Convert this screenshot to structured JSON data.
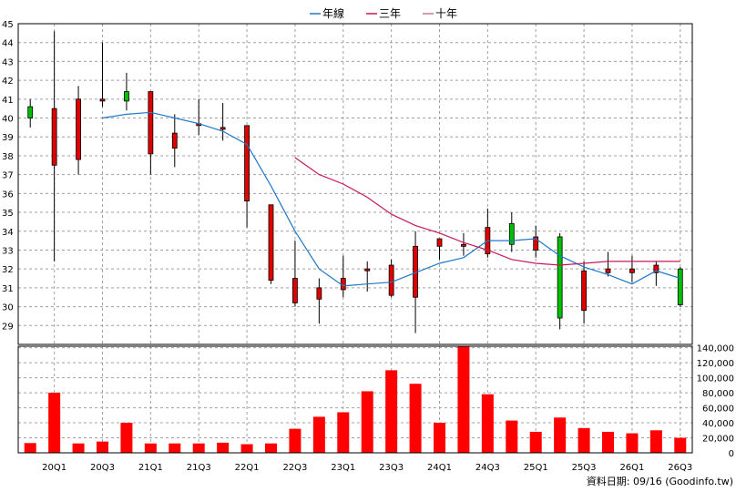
{
  "chart_data": [
    {
      "type": "candlestick",
      "legend": [
        {
          "name": "年線",
          "color": "#1f78c8"
        },
        {
          "name": "三年",
          "color": "#c8185a"
        },
        {
          "name": "十年",
          "color": "#c87898"
        }
      ],
      "legend_position": "top-center",
      "ylim": [
        28,
        45
      ],
      "yticks": [
        29,
        30,
        31,
        32,
        33,
        34,
        35,
        36,
        37,
        38,
        39,
        40,
        41,
        42,
        43,
        44,
        45
      ],
      "grid": true,
      "up_color": "#00c000",
      "down_color": "#e00000",
      "candles": [
        {
          "open": 40.0,
          "close": 40.6,
          "high": 41.0,
          "low": 39.5
        },
        {
          "open": 40.5,
          "close": 37.5,
          "high": 44.6,
          "low": 32.4
        },
        {
          "open": 41.0,
          "close": 37.8,
          "high": 41.7,
          "low": 37.0
        },
        {
          "open": 41.0,
          "close": 40.9,
          "high": 44.0,
          "low": 40.6
        },
        {
          "open": 40.9,
          "close": 41.4,
          "high": 42.4,
          "low": 40.4
        },
        {
          "open": 41.4,
          "close": 38.1,
          "high": 41.4,
          "low": 37.0
        },
        {
          "open": 39.2,
          "close": 38.4,
          "high": 40.2,
          "low": 37.4
        },
        {
          "open": 39.7,
          "close": 39.6,
          "high": 41.0,
          "low": 39.1
        },
        {
          "open": 39.5,
          "close": 39.4,
          "high": 40.8,
          "low": 38.8
        },
        {
          "open": 39.6,
          "close": 35.6,
          "high": 39.6,
          "low": 34.2
        },
        {
          "open": 35.4,
          "close": 31.4,
          "high": 35.4,
          "low": 31.2
        },
        {
          "open": 31.5,
          "close": 30.2,
          "high": 33.5,
          "low": 30.0
        },
        {
          "open": 31.0,
          "close": 30.4,
          "high": 31.5,
          "low": 29.1
        },
        {
          "open": 31.5,
          "close": 30.9,
          "high": 32.7,
          "low": 30.5
        },
        {
          "open": 32.0,
          "close": 31.9,
          "high": 32.4,
          "low": 30.8
        },
        {
          "open": 32.2,
          "close": 30.6,
          "high": 32.5,
          "low": 30.5
        },
        {
          "open": 33.2,
          "close": 30.5,
          "high": 34.0,
          "low": 28.6
        },
        {
          "open": 33.6,
          "close": 33.2,
          "high": 33.6,
          "low": 32.5
        },
        {
          "open": 33.3,
          "close": 33.2,
          "high": 33.9,
          "low": 32.7
        },
        {
          "open": 34.2,
          "close": 32.8,
          "high": 35.2,
          "low": 32.6
        },
        {
          "open": 33.3,
          "close": 34.4,
          "high": 35.0,
          "low": 32.9
        },
        {
          "open": 33.7,
          "close": 33.0,
          "high": 34.3,
          "low": 32.6
        },
        {
          "open": 29.4,
          "close": 33.7,
          "high": 33.9,
          "low": 28.8
        },
        {
          "open": 31.9,
          "close": 29.8,
          "high": 32.4,
          "low": 29.1
        },
        {
          "open": 32.0,
          "close": 31.8,
          "high": 32.9,
          "low": 31.6
        },
        {
          "open": 32.0,
          "close": 31.8,
          "high": 32.7,
          "low": 31.3
        },
        {
          "open": 32.2,
          "close": 31.8,
          "high": 32.4,
          "low": 31.1
        },
        {
          "open": 30.1,
          "close": 32.0,
          "high": 32.1,
          "low": 30.0
        }
      ],
      "year_line": [
        null,
        null,
        null,
        40.0,
        40.2,
        40.3,
        40.0,
        39.7,
        39.3,
        38.6,
        36.4,
        34.0,
        32.0,
        31.1,
        31.2,
        31.3,
        31.8,
        32.3,
        32.6,
        33.5,
        33.5,
        33.6,
        32.7,
        32.1,
        31.7,
        31.2,
        31.9,
        31.5
      ],
      "three_year_line": [
        null,
        null,
        null,
        null,
        null,
        null,
        null,
        null,
        null,
        null,
        null,
        37.9,
        37.0,
        36.5,
        35.8,
        34.9,
        34.3,
        33.9,
        33.4,
        33.0,
        32.5,
        32.3,
        32.2,
        32.3,
        32.4,
        32.4,
        32.4,
        32.4
      ]
    },
    {
      "type": "bar",
      "values": [
        13000,
        80000,
        12500,
        15000,
        40000,
        12500,
        12500,
        12500,
        13500,
        11500,
        12500,
        32000,
        48000,
        54000,
        82000,
        110000,
        92000,
        40000,
        142000,
        78000,
        43000,
        28000,
        47000,
        33000,
        28000,
        26000,
        30000,
        20000
      ],
      "ylim": [
        0,
        142000
      ],
      "yticks": [
        0,
        20000,
        40000,
        60000,
        80000,
        100000,
        120000,
        140000
      ],
      "ytick_labels": [
        "0",
        "20,000",
        "40,000",
        "60,000",
        "80,000",
        "100,000",
        "120,000",
        "140,000"
      ],
      "color": "#ff0000",
      "grid": true
    }
  ],
  "x_tick_labels": [
    "20Q1",
    "20Q3",
    "21Q1",
    "21Q3",
    "22Q1",
    "22Q3",
    "23Q1",
    "23Q3",
    "24Q1",
    "24Q3",
    "25Q1",
    "25Q3",
    "26Q1",
    "26Q3"
  ],
  "footer": "資料日期: 09/16 (Goodinfo.tw)"
}
